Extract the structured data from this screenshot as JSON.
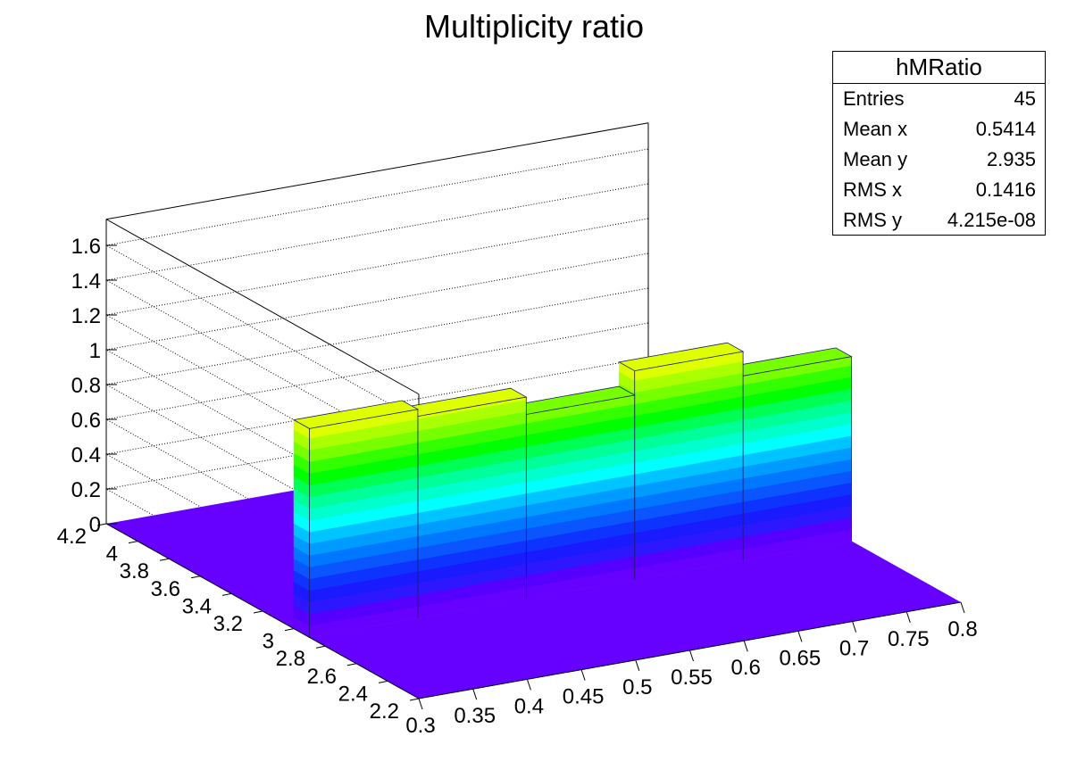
{
  "chart_data": {
    "type": "lego3d",
    "title": "Multiplicity ratio",
    "x_ticks": [
      "0.3",
      "0.35",
      "0.4",
      "0.45",
      "0.5",
      "0.55",
      "0.6",
      "0.65",
      "0.7",
      "0.75",
      "0.8"
    ],
    "y_ticks": [
      "2.2",
      "2.4",
      "2.6",
      "2.8",
      "3",
      "3.2",
      "3.4",
      "3.6",
      "3.8",
      "4",
      "4.2"
    ],
    "z_ticks": [
      "0",
      "0.2",
      "0.4",
      "0.6",
      "0.8",
      "1",
      "1.2",
      "1.4",
      "1.6"
    ],
    "xlim": [
      0.3,
      0.8
    ],
    "ylim": [
      2.2,
      4.2
    ],
    "zlim": [
      0,
      1.75
    ],
    "bins": [
      {
        "x": [
          0.3,
          0.4
        ],
        "y": [
          2.9,
          3.0
        ],
        "z": 1.2
      },
      {
        "x": [
          0.4,
          0.5
        ],
        "y": [
          2.9,
          3.0
        ],
        "z": 1.16
      },
      {
        "x": [
          0.5,
          0.6
        ],
        "y": [
          2.9,
          3.0
        ],
        "z": 1.06
      },
      {
        "x": [
          0.6,
          0.7
        ],
        "y": [
          2.9,
          3.0
        ],
        "z": 1.2
      },
      {
        "x": [
          0.7,
          0.8
        ],
        "y": [
          2.9,
          3.0
        ],
        "z": 1.06
      }
    ],
    "palette": [
      "#6600ff",
      "#5500ff",
      "#2c17ff",
      "#1a1aff",
      "#0e33ff",
      "#0b55ff",
      "#0077ff",
      "#009bff",
      "#00c4ff",
      "#00ffff",
      "#00ffcc",
      "#00ff99",
      "#00ff55",
      "#00ff00",
      "#33ff00",
      "#77ff00",
      "#aaff00",
      "#ddff00",
      "#ffff00",
      "#ffdd00",
      "#ffbb00",
      "#ff9900",
      "#ff7700",
      "#ff5500",
      "#ff3300",
      "#ff0000"
    ],
    "grid": true
  },
  "stats": {
    "name": "hMRatio",
    "rows": [
      {
        "label": "Entries",
        "value": "45"
      },
      {
        "label": "Mean x",
        "value": "0.5414"
      },
      {
        "label": "Mean y",
        "value": "2.935"
      },
      {
        "label": "RMS x",
        "value": "0.1416"
      },
      {
        "label": "RMS y",
        "value": "4.215e-08"
      }
    ]
  }
}
